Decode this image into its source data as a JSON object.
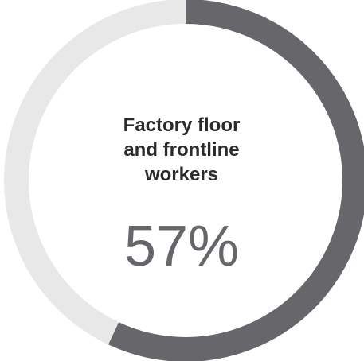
{
  "chart_data": {
    "type": "pie",
    "variant": "donut",
    "categories": [
      "Factory floor and frontline workers",
      ""
    ],
    "values": [
      57,
      43
    ],
    "label_lines": [
      "Factory floor",
      "and frontline",
      "workers"
    ],
    "value_label": "57%",
    "start": "top",
    "direction": "clockwise",
    "legend": "none",
    "colors": {
      "highlight": "#66666b",
      "remainder": "#e8e8e8",
      "label_text": "#2b2b2d",
      "value_text": "#66666b"
    }
  }
}
